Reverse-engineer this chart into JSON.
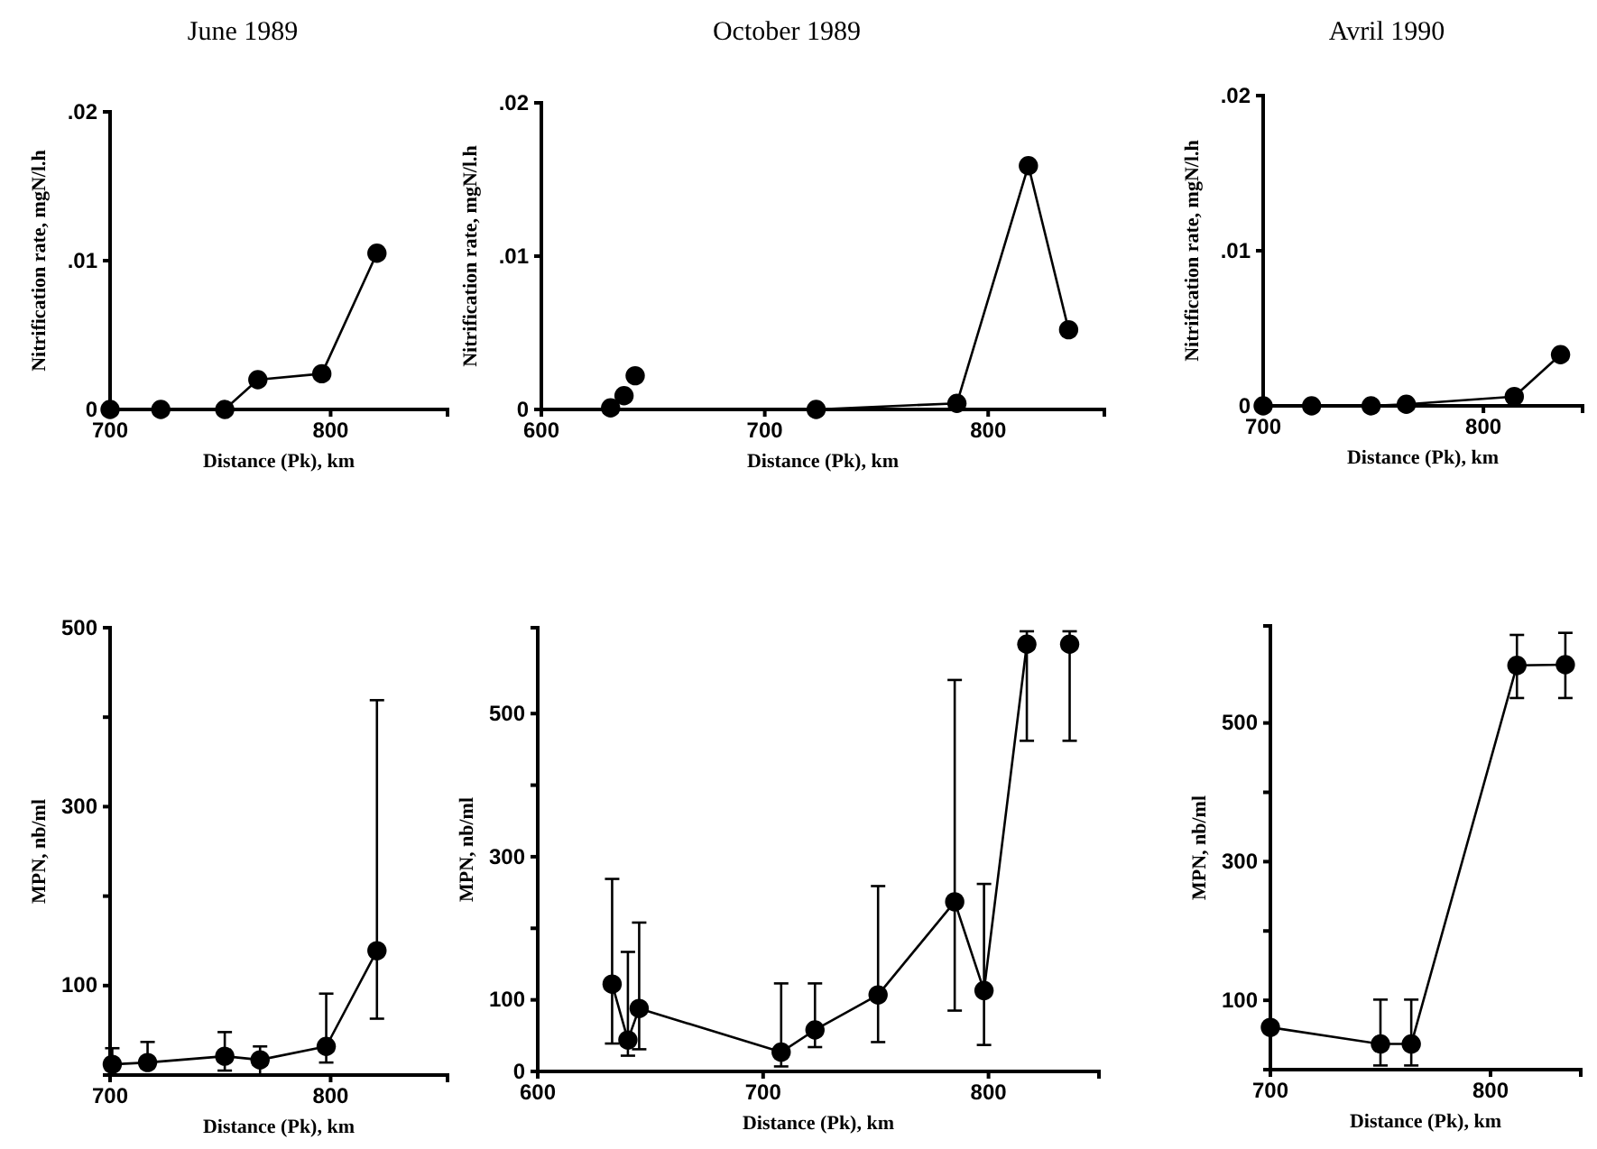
{
  "chart_data": [
    {
      "type": "line",
      "title": "June 1989",
      "xlabel": "Distance (Pk), km",
      "ylabel": "Nitrification rate, mgN/l.h",
      "xlim": [
        700,
        853
      ],
      "xticks": [
        700,
        800
      ],
      "ylim": [
        0,
        0.02
      ],
      "yticks": [
        {
          "value": 0,
          "label": "0"
        },
        {
          "value": 0.01,
          "label": ".01"
        },
        {
          "value": 0.02,
          "label": ".02"
        }
      ],
      "marker": "circle",
      "line_style": "solid",
      "grid": false,
      "series": [
        {
          "type": "line",
          "color": "#000000",
          "x": [
            700,
            723,
            752,
            767,
            796,
            821
          ],
          "values": [
            0,
            0,
            0,
            0.002,
            0.0024,
            0.0105
          ]
        }
      ]
    },
    {
      "type": "line",
      "title": "October 1989",
      "xlabel": "Distance (Pk), km",
      "ylabel": "Nitrification rate, mgN/l.h",
      "xlim": [
        600,
        852
      ],
      "xticks": [
        600,
        700,
        800
      ],
      "ylim": [
        0,
        0.02
      ],
      "yticks": [
        {
          "value": 0,
          "label": "0"
        },
        {
          "value": 0.01,
          "label": ".01"
        },
        {
          "value": 0.02,
          "label": ".02"
        }
      ],
      "marker": "circle",
      "line_style": "solid",
      "grid": false,
      "series": [
        {
          "type": "scatter",
          "color": "#000000",
          "x": [
            631,
            637,
            642
          ],
          "values": [
            0.0001,
            0.0009,
            0.0022
          ]
        },
        {
          "type": "line",
          "color": "#000000",
          "x": [
            723,
            786,
            818,
            836
          ],
          "values": [
            0,
            0.0004,
            0.0159,
            0.0052
          ]
        }
      ]
    },
    {
      "type": "line",
      "title": "Avril 1990",
      "xlabel": "Distance (Pk), km",
      "ylabel": "Nitrification rate, mgN/l.h",
      "xlim": [
        700,
        845
      ],
      "xticks": [
        700,
        800
      ],
      "ylim": [
        0,
        0.02
      ],
      "yticks": [
        {
          "value": 0,
          "label": "0"
        },
        {
          "value": 0.01,
          "label": ".01"
        },
        {
          "value": 0.02,
          "label": ".02"
        }
      ],
      "marker": "circle",
      "line_style": "solid",
      "grid": false,
      "series": [
        {
          "type": "line",
          "color": "#000000",
          "x": [
            700,
            722,
            749,
            765,
            814,
            835
          ],
          "values": [
            0,
            0,
            0,
            0.0001,
            0.0006,
            0.0033
          ]
        }
      ]
    },
    {
      "type": "line",
      "xlabel": "Distance (Pk), km",
      "ylabel": "MPN, nb/ml",
      "xlim": [
        700,
        853
      ],
      "xticks": [
        700,
        800
      ],
      "ylim": [
        0,
        500
      ],
      "yticks": [
        100,
        {
          "value": 200,
          "label": null
        },
        300,
        {
          "value": 400,
          "label": null
        },
        500
      ],
      "marker": "circle",
      "line_style": "solid",
      "grid": false,
      "series": [
        {
          "type": "line",
          "color": "#000000",
          "x": [
            701,
            717,
            752,
            768,
            798,
            821
          ],
          "values": [
            12,
            14,
            21,
            17,
            32,
            139
          ],
          "errors": [
            [
              6,
              30
            ],
            [
              8,
              37
            ],
            [
              5,
              48
            ],
            [
              0,
              32
            ],
            [
              14,
              91
            ],
            [
              63,
              419
            ]
          ]
        }
      ]
    },
    {
      "type": "line",
      "xlabel": "Distance (Pk), km",
      "ylabel": "MPN, nb/ml",
      "xlim": [
        600,
        849
      ],
      "xticks": [
        600,
        700,
        800
      ],
      "ylim": [
        0,
        620
      ],
      "yticks": [
        0,
        100,
        {
          "value": 200,
          "label": null
        },
        300,
        {
          "value": 400,
          "label": null
        },
        500
      ],
      "marker": "circle",
      "line_style": "solid",
      "grid": false,
      "series": [
        {
          "type": "line",
          "color": "#000000",
          "x": [
            633,
            640,
            645,
            708,
            723,
            751,
            785,
            798,
            817
          ],
          "values": [
            122,
            44,
            88,
            27,
            58,
            107,
            237,
            113,
            597
          ],
          "errors": [
            [
              39,
              269
            ],
            [
              22,
              167
            ],
            [
              31,
              208
            ],
            [
              7,
              123
            ],
            [
              34,
              123
            ],
            [
              41,
              259
            ],
            [
              85,
              547
            ],
            [
              37,
              262
            ],
            [
              462,
              615
            ]
          ]
        },
        {
          "type": "scatter",
          "color": "#000000",
          "x": [
            836
          ],
          "values": [
            597
          ],
          "errors": [
            [
              462,
              615
            ]
          ]
        }
      ]
    },
    {
      "type": "line",
      "xlabel": "Distance (Pk), km",
      "ylabel": "MPN, nb/ml",
      "xlim": [
        700,
        841
      ],
      "xticks": [
        700,
        800
      ],
      "ylim": [
        0,
        640
      ],
      "yticks": [
        100,
        {
          "value": 200,
          "label": null
        },
        300,
        {
          "value": 400,
          "label": null
        },
        500
      ],
      "marker": "circle",
      "line_style": "solid",
      "grid": false,
      "series": [
        {
          "type": "line",
          "color": "#000000",
          "x": [
            700,
            750,
            764,
            812,
            834
          ],
          "values": [
            61,
            37,
            37,
            583,
            584
          ],
          "errors": [
            null,
            [
              6,
              101
            ],
            [
              6,
              101
            ],
            [
              536,
              627
            ],
            [
              536,
              630
            ]
          ]
        }
      ]
    }
  ]
}
